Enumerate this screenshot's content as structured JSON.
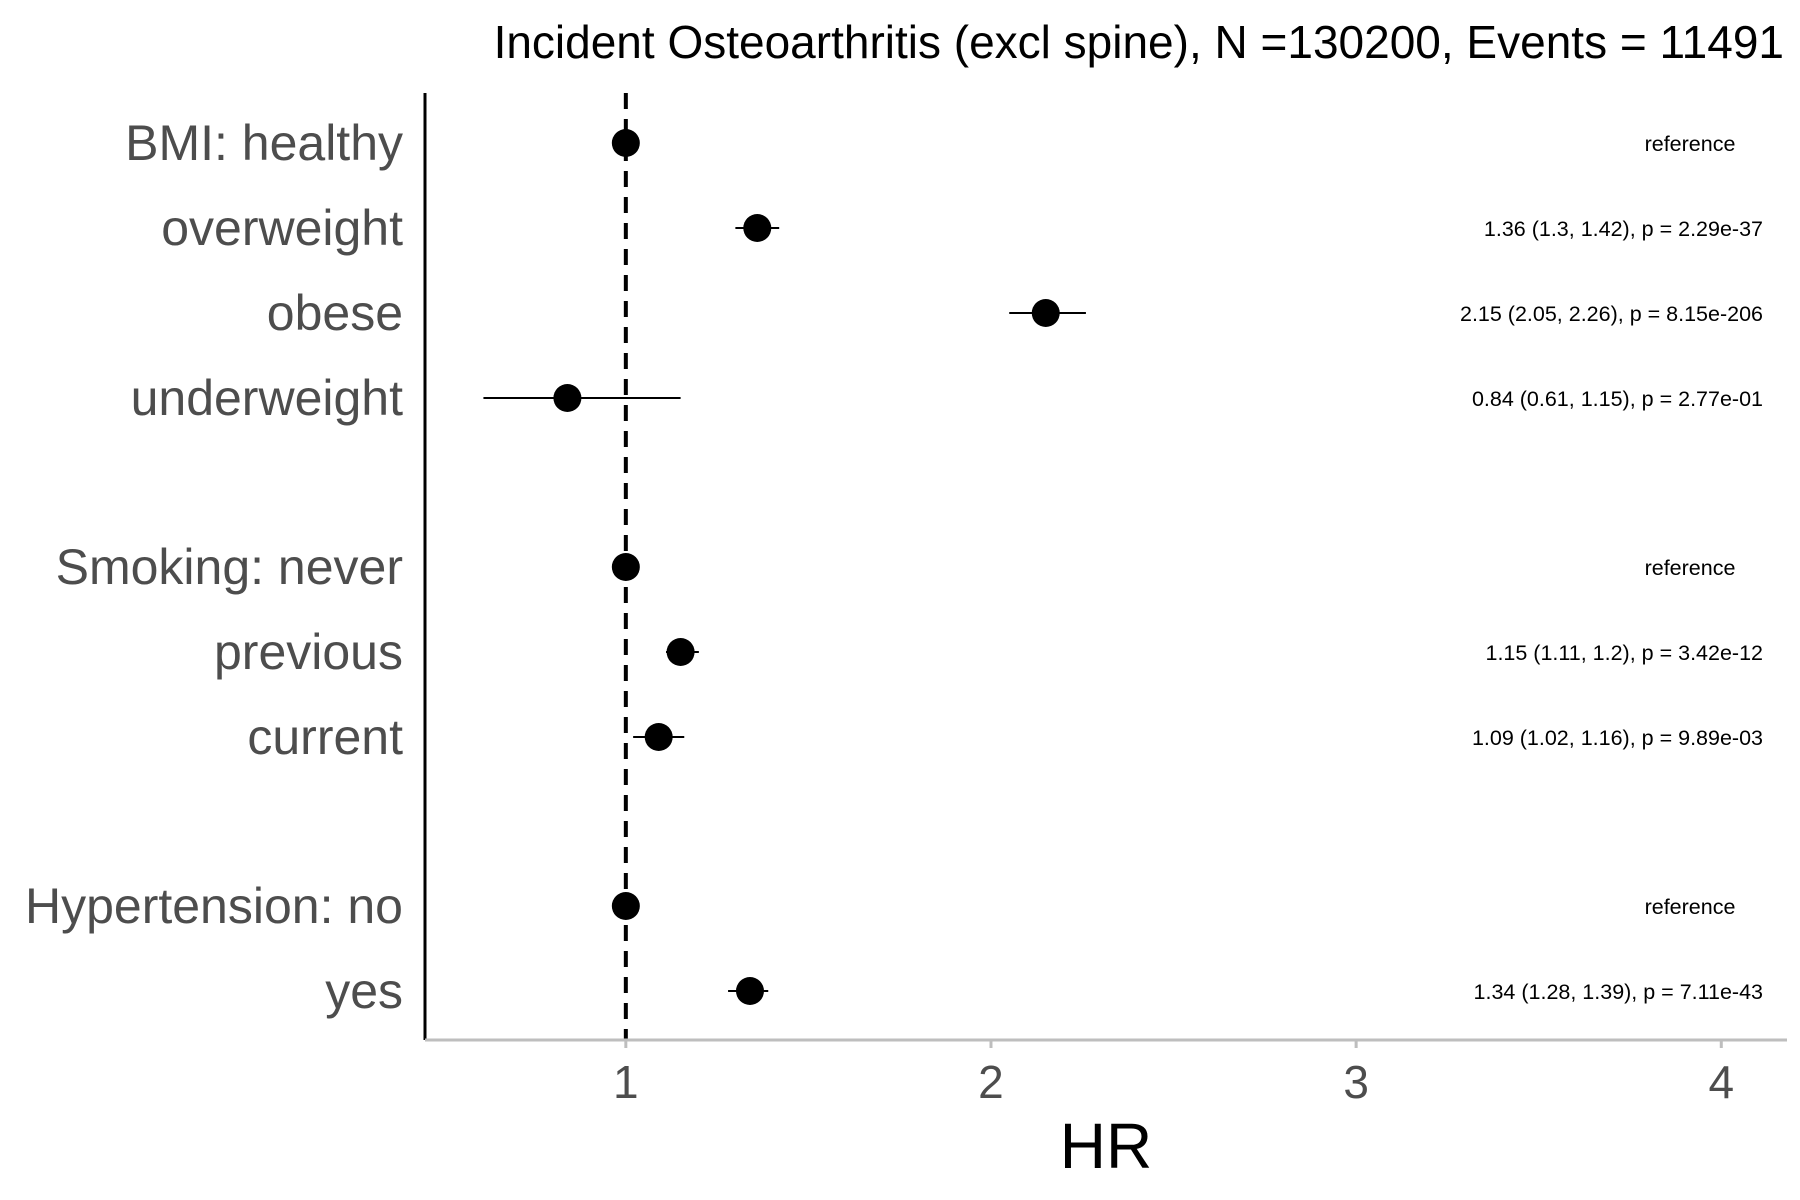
{
  "chart_data": {
    "type": "forest",
    "title": "Incident Osteoarthritis (excl spine), N =130200, Events = 11491",
    "xlabel": "HR",
    "xlim": [
      0.45,
      4.18
    ],
    "xticks": [
      1,
      2,
      3,
      4
    ],
    "xtick_labels": [
      "1",
      "2",
      "3",
      "4"
    ],
    "reference_line": 1,
    "rows": [
      {
        "label": "BMI: healthy",
        "hr": 1.0,
        "lo": 1.0,
        "hi": 1.0,
        "annotation": "reference",
        "is_reference": true
      },
      {
        "label": "overweight",
        "hr": 1.36,
        "lo": 1.3,
        "hi": 1.42,
        "annotation": "1.36 (1.3, 1.42), p = 2.29e-37",
        "is_reference": false
      },
      {
        "label": "obese",
        "hr": 2.15,
        "lo": 2.05,
        "hi": 2.26,
        "annotation": "2.15 (2.05, 2.26), p = 8.15e-206",
        "is_reference": false
      },
      {
        "label": "underweight",
        "hr": 0.84,
        "lo": 0.61,
        "hi": 1.15,
        "annotation": "0.84 (0.61, 1.15), p = 2.77e-01",
        "is_reference": false
      },
      {
        "label": "Smoking: never",
        "hr": 1.0,
        "lo": 1.0,
        "hi": 1.0,
        "annotation": "reference",
        "is_reference": true
      },
      {
        "label": "previous",
        "hr": 1.15,
        "lo": 1.11,
        "hi": 1.2,
        "annotation": "1.15 (1.11, 1.2), p = 3.42e-12",
        "is_reference": false
      },
      {
        "label": "current",
        "hr": 1.09,
        "lo": 1.02,
        "hi": 1.16,
        "annotation": "1.09 (1.02, 1.16), p = 9.89e-03",
        "is_reference": false
      },
      {
        "label": "Hypertension: no",
        "hr": 1.0,
        "lo": 1.0,
        "hi": 1.0,
        "annotation": "reference",
        "is_reference": true
      },
      {
        "label": "yes",
        "hr": 1.34,
        "lo": 1.28,
        "hi": 1.39,
        "annotation": "1.34 (1.28, 1.39), p = 7.11e-43",
        "is_reference": false
      }
    ]
  }
}
